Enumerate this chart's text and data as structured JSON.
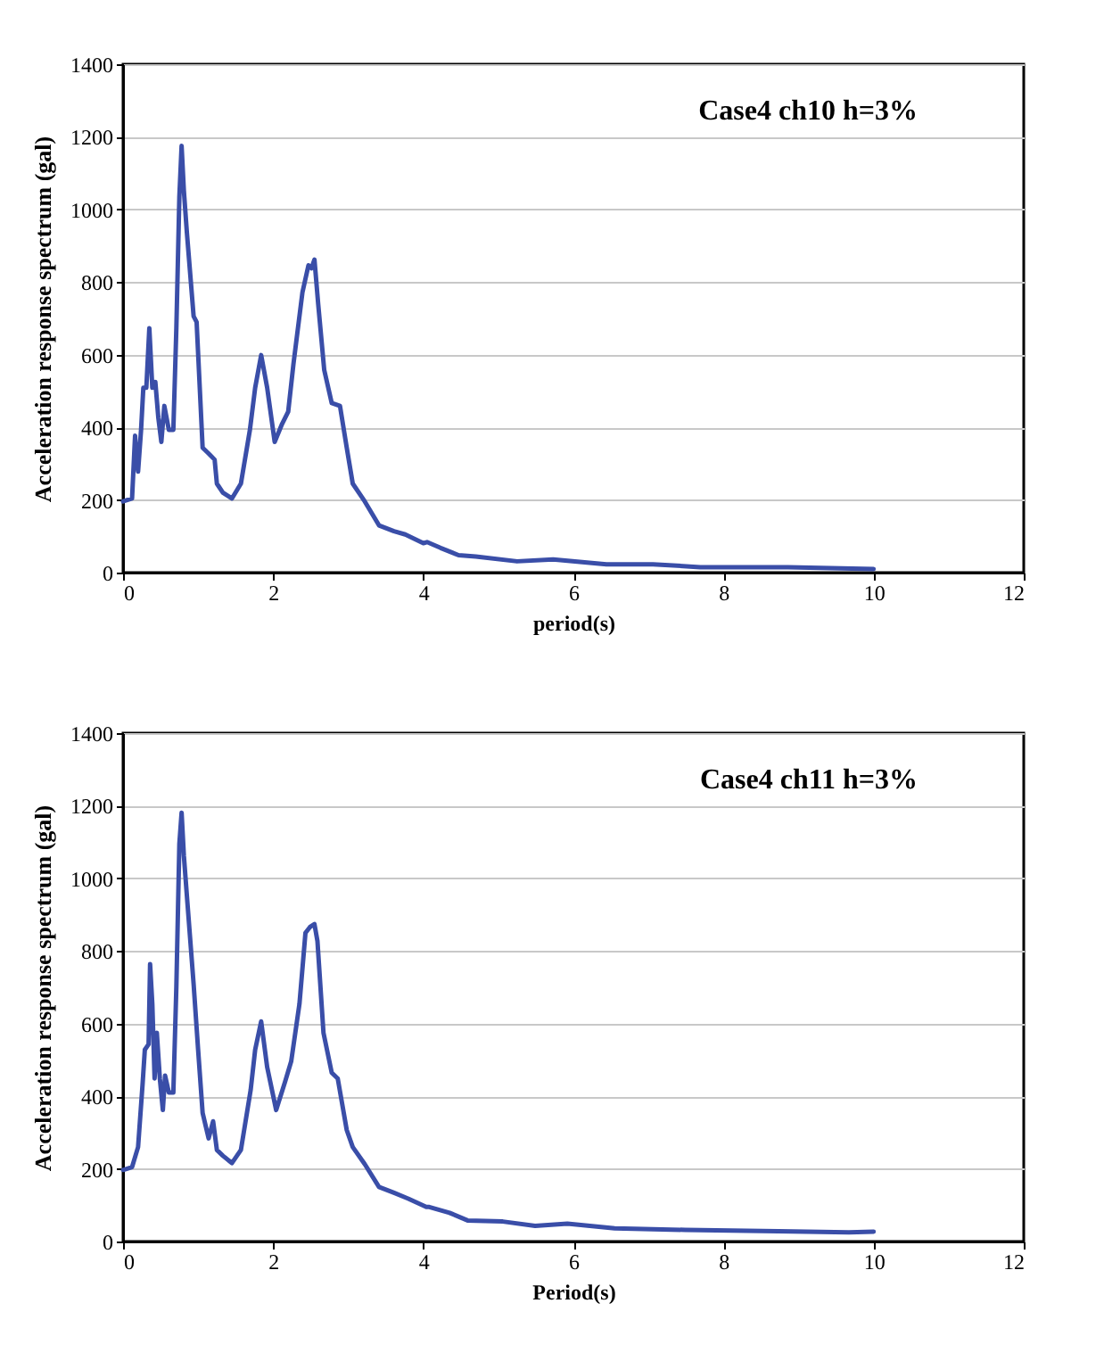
{
  "chart_data": [
    {
      "type": "line",
      "title": "Case4 ch10 h=3%",
      "xlabel": "period(s)",
      "ylabel": "Acceleration response spectrum (gal)",
      "xlim": [
        0,
        12
      ],
      "xticks": [
        0,
        2,
        4,
        6,
        8,
        10,
        12
      ],
      "ylim": [
        0,
        1400
      ],
      "yticks": [
        0,
        200,
        400,
        600,
        800,
        1000,
        1200,
        1400
      ],
      "grid": "y",
      "series": [
        {
          "color": "#3a4ea8",
          "x": [
            0,
            0.12,
            0.16,
            0.2,
            0.24,
            0.27,
            0.31,
            0.35,
            0.39,
            0.43,
            0.47,
            0.51,
            0.55,
            0.61,
            0.67,
            0.71,
            0.75,
            0.78,
            0.81,
            0.85,
            0.94,
            0.98,
            1.06,
            1.14,
            1.22,
            1.25,
            1.33,
            1.45,
            1.57,
            1.69,
            1.76,
            1.84,
            1.92,
            2.02,
            2.12,
            2.2,
            2.27,
            2.39,
            2.47,
            2.51,
            2.55,
            2.6,
            2.68,
            2.78,
            2.89,
            2.98,
            3.06,
            3.22,
            3.41,
            3.61,
            3.76,
            4.0,
            4.05,
            4.23,
            4.47,
            4.7,
            5.25,
            5.73,
            6.44,
            7.06,
            7.69,
            8.86,
            10.0
          ],
          "values": [
            196,
            204,
            377,
            278,
            393,
            509,
            509,
            673,
            509,
            525,
            426,
            360,
            459,
            393,
            393,
            673,
            1035,
            1175,
            1052,
            937,
            706,
            690,
            344,
            328,
            311,
            245,
            220,
            204,
            245,
            393,
            509,
            599,
            509,
            360,
            410,
            443,
            574,
            772,
            846,
            838,
            862,
            739,
            558,
            467,
            459,
            344,
            245,
            196,
            130,
            114,
            105,
            81,
            84,
            68,
            48,
            44,
            31,
            36,
            23,
            23,
            15,
            15,
            10
          ]
        }
      ]
    },
    {
      "type": "line",
      "title": "Case4 ch11 h=3%",
      "xlabel": "Period(s)",
      "ylabel": "Acceleration response spectrum (gal)",
      "xlim": [
        0,
        12
      ],
      "xticks": [
        0,
        2,
        4,
        6,
        8,
        10,
        12
      ],
      "ylim": [
        0,
        1400
      ],
      "yticks": [
        0,
        200,
        400,
        600,
        800,
        1000,
        1200,
        1400
      ],
      "grid": "y",
      "series": [
        {
          "color": "#3a4ea8",
          "x": [
            0,
            0.12,
            0.2,
            0.26,
            0.29,
            0.34,
            0.36,
            0.39,
            0.42,
            0.45,
            0.49,
            0.53,
            0.56,
            0.61,
            0.67,
            0.71,
            0.75,
            0.78,
            0.81,
            0.85,
            0.94,
            1.0,
            1.06,
            1.14,
            1.2,
            1.25,
            1.33,
            1.45,
            1.57,
            1.7,
            1.76,
            1.84,
            1.92,
            2.04,
            2.16,
            2.24,
            2.35,
            2.43,
            2.49,
            2.55,
            2.59,
            2.67,
            2.78,
            2.86,
            2.98,
            3.06,
            3.22,
            3.41,
            3.61,
            3.8,
            4.04,
            4.08,
            4.35,
            4.59,
            5.06,
            5.49,
            5.92,
            6.55,
            7.49,
            8.73,
            9.67,
            10.0
          ],
          "values": [
            197,
            205,
            260,
            433,
            528,
            543,
            764,
            654,
            449,
            575,
            449,
            362,
            457,
            410,
            410,
            701,
            1095,
            1181,
            1063,
            953,
            709,
            528,
            354,
            284,
            331,
            252,
            236,
            216,
            252,
            417,
            528,
            606,
            480,
            362,
            441,
            496,
            654,
            850,
            866,
            874,
            827,
            575,
            465,
            449,
            307,
            260,
            213,
            150,
            134,
            118,
            95,
            95,
            79,
            58,
            55,
            43,
            49,
            36,
            32,
            28,
            25,
            27
          ]
        }
      ]
    }
  ]
}
